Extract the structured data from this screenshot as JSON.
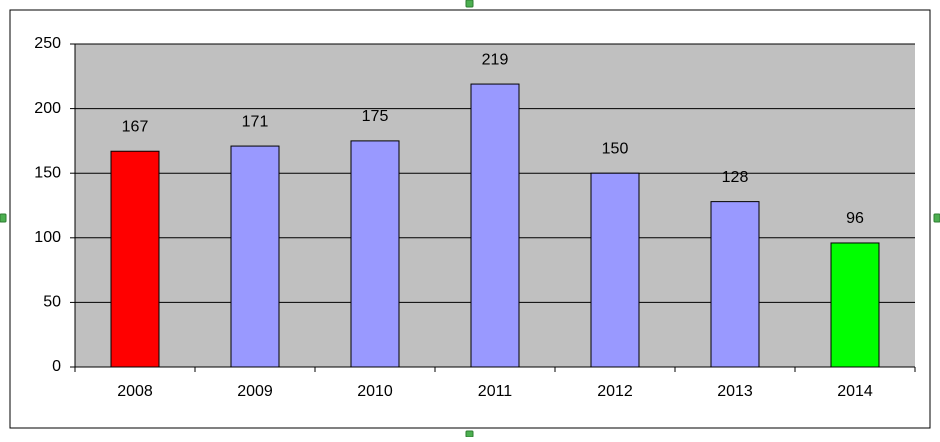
{
  "chart_data": {
    "type": "bar",
    "categories": [
      "2008",
      "2009",
      "2010",
      "2011",
      "2012",
      "2013",
      "2014"
    ],
    "values": [
      167,
      171,
      175,
      219,
      150,
      128,
      96
    ],
    "colors": [
      "#ff0000",
      "#9999ff",
      "#9999ff",
      "#9999ff",
      "#9999ff",
      "#9999ff",
      "#00ff00"
    ],
    "ylim": [
      0,
      250
    ],
    "yticks": [
      0,
      50,
      100,
      150,
      200,
      250
    ],
    "grid": true
  }
}
